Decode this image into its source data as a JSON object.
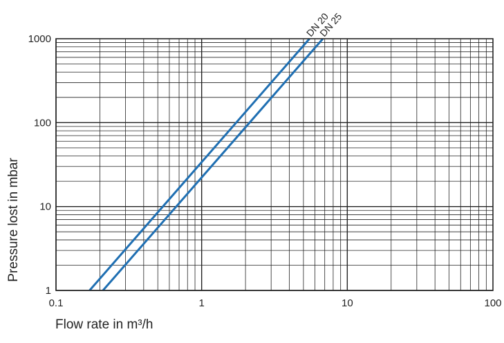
{
  "chart_data": {
    "type": "line",
    "title": "",
    "xlabel": "Flow rate in m³/h",
    "ylabel": "Pressure lost in mbar",
    "x_scale": "log",
    "y_scale": "log",
    "xlim": [
      0.1,
      100
    ],
    "ylim": [
      1,
      1000
    ],
    "x_tick_labels": [
      "0.1",
      "1",
      "10",
      "100"
    ],
    "y_tick_labels": [
      "1",
      "10",
      "100",
      "1000"
    ],
    "x_tick_values": [
      0.1,
      1,
      10,
      100
    ],
    "y_tick_values": [
      1,
      10,
      100,
      1000
    ],
    "grid": true,
    "legend": "none",
    "line_color": "#1f6fb2",
    "grid_color": "#222222",
    "series": [
      {
        "name": "DN 20",
        "x": [
          0.17,
          5.5
        ],
        "y": [
          1,
          1000
        ]
      },
      {
        "name": "DN 25",
        "x": [
          0.21,
          6.8
        ],
        "y": [
          1,
          1000
        ]
      }
    ]
  }
}
